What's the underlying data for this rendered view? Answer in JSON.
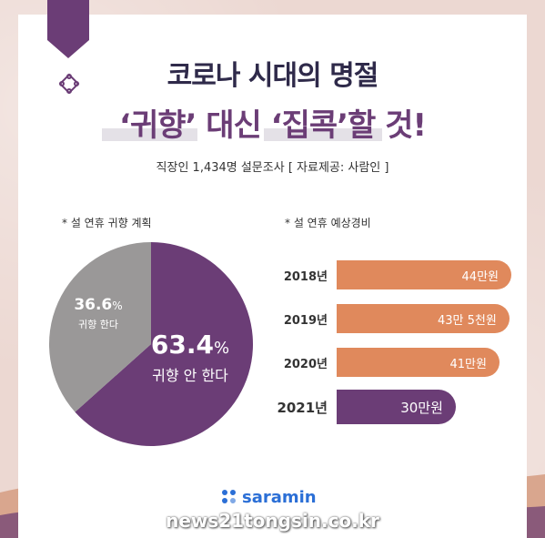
{
  "title": {
    "line1": "코로나 시대의 명절",
    "line2": "‘귀향’ 대신 ‘집콕’할 것!"
  },
  "subtitle": "직장인 1,434명 설문조사 [ 자료제공: 사람인 ]",
  "colors": {
    "purple": "#6b3d76",
    "gray": "#9a9898",
    "orange": "#e0895c",
    "navy": "#2f2a4a",
    "brand_blue": "#2b6fd6"
  },
  "chart_data": [
    {
      "type": "pie",
      "title": "* 설 연휴 귀향 계획",
      "slices": [
        {
          "label": "귀향 안 한다",
          "value": 63.4,
          "value_text": "63.4",
          "unit": "%",
          "color": "#6b3d76"
        },
        {
          "label": "귀향 한다",
          "value": 36.6,
          "value_text": "36.6",
          "unit": "%",
          "color": "#9a9898"
        }
      ]
    },
    {
      "type": "bar",
      "orientation": "horizontal",
      "title": "* 설 연휴 예상경비",
      "categories": [
        "2018년",
        "2019년",
        "2020년",
        "2021년"
      ],
      "values": [
        44,
        43.5,
        41,
        30
      ],
      "value_labels": [
        "44만원",
        "43만 5천원",
        "41만원",
        "30만원"
      ],
      "unit": "만원",
      "colors": [
        "#e0895c",
        "#e0895c",
        "#e0895c",
        "#6b3d76"
      ]
    }
  ],
  "logo": {
    "text": "saramin",
    "icon": "saramin-dots-icon"
  },
  "watermark": "news21tongsin.co.kr"
}
